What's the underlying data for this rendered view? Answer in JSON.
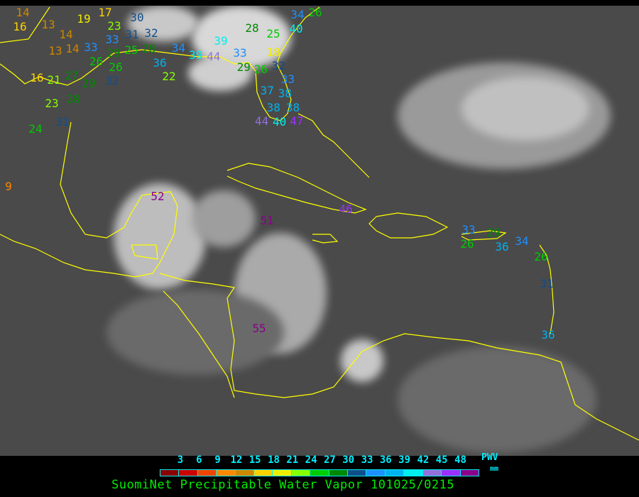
{
  "caption": "SuomiNet Precipitable Water Vapor 101025/0215",
  "legend": {
    "unit_top": "PWV",
    "unit_bottom": "mm",
    "ticks": [
      "3",
      "6",
      "9",
      "12",
      "15",
      "18",
      "21",
      "24",
      "27",
      "30",
      "33",
      "36",
      "39",
      "42",
      "45",
      "48"
    ],
    "colors": [
      "#8b0000",
      "#cc0000",
      "#ee4400",
      "#ff8800",
      "#cc8800",
      "#ffd000",
      "#eeee00",
      "#88ff00",
      "#00cc00",
      "#008800",
      "#104e8b",
      "#1e90ff",
      "#00b2ee",
      "#00eeee",
      "#9370db",
      "#9b30ff",
      "#8b008b"
    ]
  },
  "map": {
    "coastline_color": "#ffff00",
    "stations": [
      {
        "v": "14"
      },
      {
        "v": "16"
      },
      {
        "v": "13"
      },
      {
        "v": "14"
      },
      {
        "v": "13"
      },
      {
        "v": "14"
      },
      {
        "v": "19"
      },
      {
        "v": "17"
      },
      {
        "v": "23"
      },
      {
        "v": "30"
      },
      {
        "v": "33"
      },
      {
        "v": "31"
      },
      {
        "v": "32"
      },
      {
        "v": "33"
      },
      {
        "v": "29"
      },
      {
        "v": "25"
      },
      {
        "v": "28"
      },
      {
        "v": "26"
      },
      {
        "v": "26"
      },
      {
        "v": "16"
      },
      {
        "v": "21"
      },
      {
        "v": "27"
      },
      {
        "v": "29"
      },
      {
        "v": "28"
      },
      {
        "v": "23"
      },
      {
        "v": "31"
      },
      {
        "v": "24"
      },
      {
        "v": "32"
      },
      {
        "v": "36"
      },
      {
        "v": "34"
      },
      {
        "v": "39"
      },
      {
        "v": "22"
      },
      {
        "v": "39"
      },
      {
        "v": "28"
      },
      {
        "v": "25"
      },
      {
        "v": "34"
      },
      {
        "v": "40"
      },
      {
        "v": "26"
      },
      {
        "v": "18"
      },
      {
        "v": "33"
      },
      {
        "v": "29"
      },
      {
        "v": "26"
      },
      {
        "v": "32"
      },
      {
        "v": "33"
      },
      {
        "v": "37"
      },
      {
        "v": "38"
      },
      {
        "v": "38"
      },
      {
        "v": "38"
      },
      {
        "v": "44"
      },
      {
        "v": "40"
      },
      {
        "v": "47"
      },
      {
        "v": "44"
      },
      {
        "v": "52"
      },
      {
        "v": "51"
      },
      {
        "v": "46"
      },
      {
        "v": "55"
      },
      {
        "v": "36"
      },
      {
        "v": "34"
      },
      {
        "v": "26"
      },
      {
        "v": "33"
      },
      {
        "v": "29"
      },
      {
        "v": "26"
      },
      {
        "v": "31"
      },
      {
        "v": "36"
      },
      {
        "v": "9"
      }
    ]
  }
}
